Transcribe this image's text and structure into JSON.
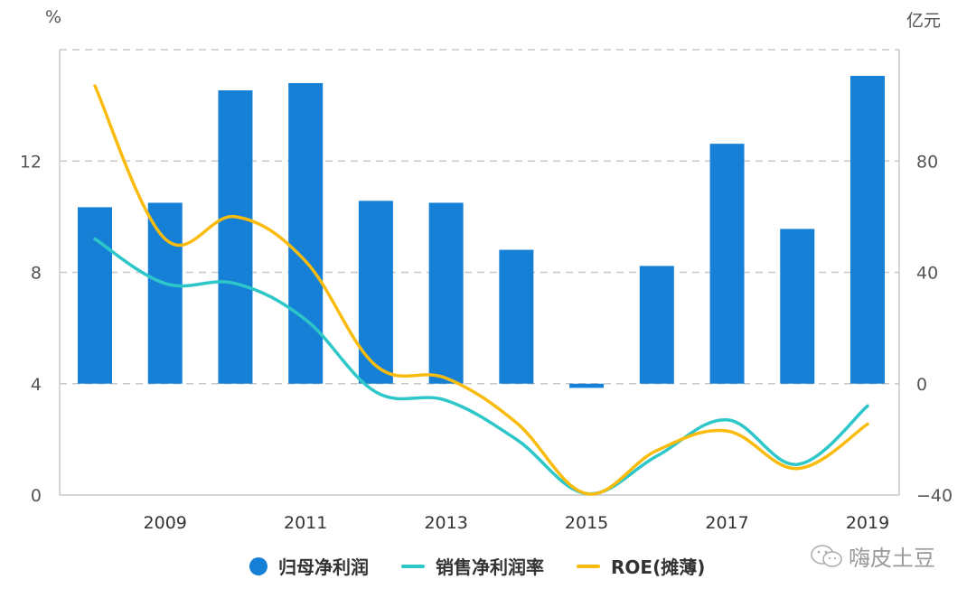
{
  "chart_data": {
    "type": "bar+line",
    "title": "",
    "categories": [
      "2008",
      "2009",
      "2010",
      "2011",
      "2012",
      "2013",
      "2014",
      "2015",
      "2016",
      "2017",
      "2018",
      "2019"
    ],
    "x_tick_labels": [
      "2009",
      "2011",
      "2013",
      "2015",
      "2017",
      "2019"
    ],
    "left_axis": {
      "label": "%",
      "ticks": [
        0,
        4,
        8,
        12
      ],
      "range": [
        0,
        16
      ]
    },
    "right_axis": {
      "label": "亿元",
      "ticks": [
        -40,
        0,
        40,
        80
      ],
      "range": [
        -40,
        120
      ]
    },
    "series": [
      {
        "name": "归母净利润",
        "type": "bar",
        "axis": "right",
        "color": "#1580D6",
        "values": [
          63.4,
          65.0,
          105.4,
          108.0,
          65.7,
          65.0,
          48.1,
          -1.5,
          42.3,
          86.2,
          55.6,
          110.6
        ]
      },
      {
        "name": "销售净利润率",
        "type": "line",
        "axis": "left",
        "color": "#2EC7C9",
        "values": [
          9.2,
          7.6,
          7.6,
          6.3,
          3.7,
          3.4,
          2.0,
          0.05,
          1.4,
          2.7,
          1.1,
          3.2
        ]
      },
      {
        "name": "ROE(摊薄)",
        "type": "line",
        "axis": "left",
        "color": "#F9BC0E",
        "values": [
          14.7,
          9.2,
          10.0,
          8.4,
          4.65,
          4.2,
          2.6,
          0.05,
          1.6,
          2.3,
          0.95,
          2.55
        ]
      }
    ],
    "grid": true,
    "legend_position": "bottom"
  },
  "units": {
    "left": "%",
    "right": "亿元"
  },
  "legend": [
    {
      "label": "归母净利润",
      "marker": "circle",
      "color": "#1580D6"
    },
    {
      "label": "销售净利润率",
      "marker": "line",
      "color": "#2EC7C9"
    },
    {
      "label": "ROE(摊薄)",
      "marker": "line",
      "color": "#F9BC0E"
    }
  ],
  "watermark": {
    "icon": "wechat-icon",
    "text": "嗨皮土豆"
  }
}
